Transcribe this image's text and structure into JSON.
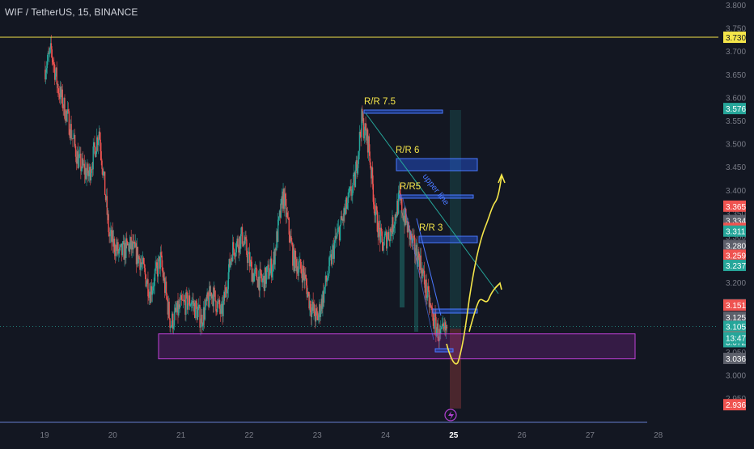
{
  "header": {
    "symbol": "WIF / TetherUS, 15, BINANCE"
  },
  "colors": {
    "background": "#131722",
    "up_candle": "#26a69a",
    "down_candle": "#ef5350",
    "price_line": "#f5e64a",
    "zone_purple": "#9c27b0",
    "zone_blue": "#2962ff",
    "annotation_yellow": "#f5e64a",
    "axis_text": "#787b86"
  },
  "chart_data": {
    "type": "candlestick",
    "symbol": "WIF/USDT",
    "timeframe": "15",
    "exchange": "BINANCE",
    "x_axis_ticks": [
      "19",
      "20",
      "21",
      "22",
      "23",
      "24",
      "25",
      "26",
      "27",
      "28"
    ],
    "highlighted_x_tick": "25",
    "y_axis_ticks": [
      "3.800",
      "3.750",
      "3.700",
      "3.650",
      "3.600",
      "3.550",
      "3.500",
      "3.450",
      "3.400",
      "3.350",
      "3.300",
      "3.250",
      "3.200",
      "3.150",
      "3.100",
      "3.050",
      "3.000",
      "2.950"
    ],
    "ylim": [
      2.93,
      3.82
    ],
    "horizontal_line": {
      "label": "3.730",
      "value": 3.73
    },
    "current_price": 3.105,
    "countdown": "13:47",
    "price_badges": [
      {
        "label": "3.576",
        "value": 3.576,
        "color": "#26a69a"
      },
      {
        "label": "3.365",
        "value": 3.365,
        "color": "#ef5350"
      },
      {
        "label": "3.334",
        "value": 3.334,
        "color": "#5d606b"
      },
      {
        "label": "3.317",
        "value": 3.317,
        "color": "#ef5350"
      },
      {
        "label": "3.311",
        "value": 3.311,
        "color": "#26a69a"
      },
      {
        "label": "3.280",
        "value": 3.28,
        "color": "#5d606b"
      },
      {
        "label": "3.259",
        "value": 3.259,
        "color": "#ef5350"
      },
      {
        "label": "3.237",
        "value": 3.237,
        "color": "#26a69a"
      },
      {
        "label": "3.152",
        "value": 3.152,
        "color": "#5d606b"
      },
      {
        "label": "3.151",
        "value": 3.151,
        "color": "#ef5350"
      },
      {
        "label": "3.125",
        "value": 3.125,
        "color": "#5d606b"
      },
      {
        "label": "3.105",
        "value": 3.105,
        "color": "#26a69a"
      },
      {
        "label": "3.082",
        "value": 3.082,
        "color": "#ef5350"
      },
      {
        "label": "3.081",
        "value": 3.081,
        "color": "#26a69a"
      },
      {
        "label": "3.072",
        "value": 3.072,
        "color": "#26a69a"
      },
      {
        "label": "3.036",
        "value": 3.036,
        "color": "#5d606b"
      },
      {
        "label": "2.936",
        "value": 2.936,
        "color": "#ef5350"
      }
    ],
    "annotations": [
      {
        "label": "R/R 7.5",
        "price": 3.576
      },
      {
        "label": "R/R 6",
        "price": 3.46
      },
      {
        "label": "R/R5",
        "price": 3.38
      },
      {
        "label": "R/R 3",
        "price": 3.28
      },
      {
        "label": "upper line",
        "price": 3.41
      }
    ],
    "support_zone": {
      "top": 3.089,
      "bottom": 3.035
    },
    "price_path": [
      [
        19.0,
        3.66
      ],
      [
        19.1,
        3.7
      ],
      [
        19.2,
        3.62
      ],
      [
        19.35,
        3.55
      ],
      [
        19.5,
        3.46
      ],
      [
        19.65,
        3.43
      ],
      [
        19.8,
        3.53
      ],
      [
        19.95,
        3.3
      ],
      [
        20.1,
        3.26
      ],
      [
        20.25,
        3.28
      ],
      [
        20.4,
        3.25
      ],
      [
        20.55,
        3.18
      ],
      [
        20.7,
        3.25
      ],
      [
        20.85,
        3.11
      ],
      [
        21.0,
        3.15
      ],
      [
        21.15,
        3.16
      ],
      [
        21.3,
        3.12
      ],
      [
        21.45,
        3.18
      ],
      [
        21.6,
        3.13
      ],
      [
        21.75,
        3.27
      ],
      [
        21.9,
        3.3
      ],
      [
        22.05,
        3.22
      ],
      [
        22.2,
        3.2
      ],
      [
        22.35,
        3.24
      ],
      [
        22.5,
        3.39
      ],
      [
        22.65,
        3.25
      ],
      [
        22.8,
        3.22
      ],
      [
        22.9,
        3.15
      ],
      [
        23.0,
        3.12
      ],
      [
        23.1,
        3.18
      ],
      [
        23.25,
        3.28
      ],
      [
        23.4,
        3.35
      ],
      [
        23.55,
        3.42
      ],
      [
        23.65,
        3.55
      ],
      [
        23.75,
        3.5
      ],
      [
        23.85,
        3.35
      ],
      [
        23.95,
        3.28
      ],
      [
        24.1,
        3.32
      ],
      [
        24.2,
        3.38
      ],
      [
        24.3,
        3.33
      ],
      [
        24.4,
        3.28
      ],
      [
        24.5,
        3.25
      ],
      [
        24.6,
        3.18
      ],
      [
        24.7,
        3.12
      ],
      [
        24.8,
        3.08
      ],
      [
        24.9,
        3.1
      ]
    ]
  }
}
